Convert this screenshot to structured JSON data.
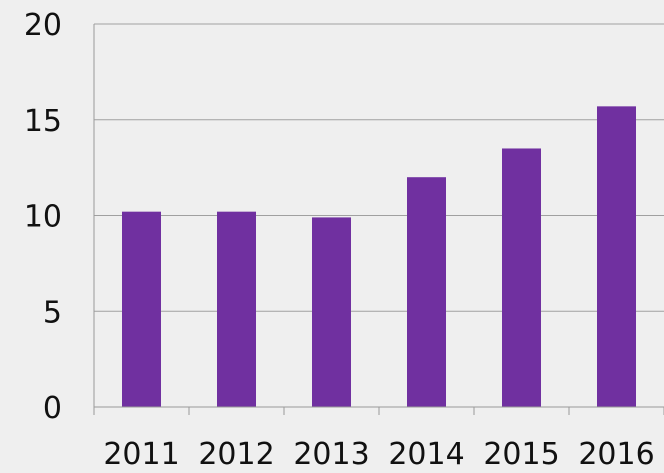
{
  "chart_data": {
    "type": "bar",
    "title": "",
    "xlabel": "",
    "ylabel": "",
    "categories": [
      "2011",
      "2012",
      "2013",
      "2014",
      "2015",
      "2016"
    ],
    "series": [
      {
        "values": [
          10.2,
          10.2,
          9.9,
          12.0,
          13.5,
          15.7
        ]
      }
    ],
    "ylim": [
      0,
      20
    ],
    "yticks": [
      "0",
      "5",
      "10",
      "15",
      "20"
    ],
    "grid": true,
    "legend": "none",
    "bar_color": "#7030a0",
    "background_color": "#efefef",
    "grid_color": "#a0a0a0"
  }
}
